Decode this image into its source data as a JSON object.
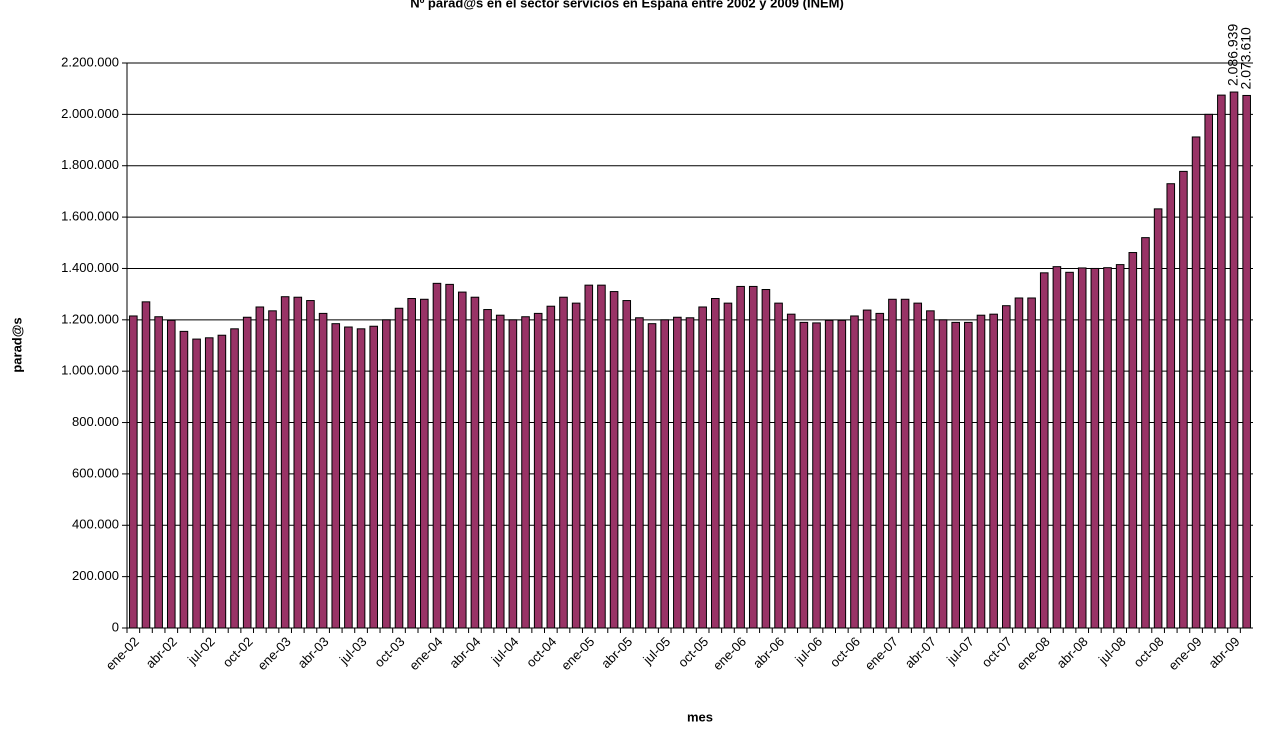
{
  "chart_data": {
    "type": "bar",
    "title": "Nº parad@s en el sector servicios en España entre 2002 y 2009 (INEM)",
    "x_label": "mes",
    "y_label": "parad@s",
    "categories": [
      "ene-02",
      null,
      null,
      "abr-02",
      null,
      null,
      "jul-02",
      null,
      null,
      "oct-02",
      null,
      null,
      "ene-03",
      null,
      null,
      "abr-03",
      null,
      null,
      "jul-03",
      null,
      null,
      "oct-03",
      null,
      null,
      "ene-04",
      null,
      null,
      "abr-04",
      null,
      null,
      "jul-04",
      null,
      null,
      "oct-04",
      null,
      null,
      "ene-05",
      null,
      null,
      "abr-05",
      null,
      null,
      "jul-05",
      null,
      null,
      "oct-05",
      null,
      null,
      "ene-06",
      null,
      null,
      "abr-06",
      null,
      null,
      "jul-06",
      null,
      null,
      "oct-06",
      null,
      null,
      "ene-07",
      null,
      null,
      "abr-07",
      null,
      null,
      "jul-07",
      null,
      null,
      "oct-07",
      null,
      null,
      "ene-08",
      null,
      null,
      "abr-08",
      null,
      null,
      "jul-08",
      null,
      null,
      "oct-08",
      null,
      null,
      "ene-09",
      null,
      null,
      "abr-09",
      null
    ],
    "values": [
      1215000,
      1270000,
      1212000,
      1198000,
      1155000,
      1125000,
      1130000,
      1140000,
      1165000,
      1210000,
      1250000,
      1235000,
      1290000,
      1288000,
      1275000,
      1225000,
      1185000,
      1172000,
      1165000,
      1175000,
      1200000,
      1245000,
      1283000,
      1280000,
      1342000,
      1338000,
      1308000,
      1288000,
      1240000,
      1218000,
      1200000,
      1212000,
      1225000,
      1253000,
      1288000,
      1265000,
      1335000,
      1335000,
      1310000,
      1275000,
      1208000,
      1185000,
      1200000,
      1210000,
      1208000,
      1250000,
      1283000,
      1265000,
      1330000,
      1330000,
      1318000,
      1265000,
      1222000,
      1190000,
      1188000,
      1198000,
      1198000,
      1215000,
      1238000,
      1225000,
      1280000,
      1280000,
      1265000,
      1235000,
      1200000,
      1190000,
      1190000,
      1218000,
      1222000,
      1255000,
      1285000,
      1285000,
      1383000,
      1407000,
      1385000,
      1402000,
      1400000,
      1403000,
      1415000,
      1462000,
      1520000,
      1632000,
      1730000,
      1778000,
      1912000,
      2000000,
      2075000,
      2086939,
      2073610
    ],
    "value_labels": [
      null,
      null,
      null,
      null,
      null,
      null,
      null,
      null,
      null,
      null,
      null,
      null,
      null,
      null,
      null,
      null,
      null,
      null,
      null,
      null,
      null,
      null,
      null,
      null,
      null,
      null,
      null,
      null,
      null,
      null,
      null,
      null,
      null,
      null,
      null,
      null,
      null,
      null,
      null,
      null,
      null,
      null,
      null,
      null,
      null,
      null,
      null,
      null,
      null,
      null,
      null,
      null,
      null,
      null,
      null,
      null,
      null,
      null,
      null,
      null,
      null,
      null,
      null,
      null,
      null,
      null,
      null,
      null,
      null,
      null,
      null,
      null,
      null,
      null,
      null,
      null,
      null,
      null,
      null,
      null,
      null,
      null,
      null,
      null,
      null,
      null,
      null,
      "2.086.939",
      "2.073.610"
    ],
    "color": "#993366",
    "ylim": [
      0,
      2200000
    ],
    "yticks": [
      0,
      {
        "value": 200000,
        "label": "200.000"
      },
      {
        "value": 400000,
        "label": "400.000"
      },
      {
        "value": 600000,
        "label": "600.000"
      },
      {
        "value": 800000,
        "label": "800.000"
      },
      {
        "value": 1000000,
        "label": "1.000.000"
      },
      {
        "value": 1200000,
        "label": "1.200.000"
      },
      {
        "value": 1400000,
        "label": "1.400.000"
      },
      {
        "value": 1600000,
        "label": "1.600.000"
      },
      {
        "value": 1800000,
        "label": "1.800.000"
      },
      {
        "value": 2000000,
        "label": "2.000.000"
      },
      {
        "value": 2200000,
        "label": "2.200.000"
      }
    ],
    "grid": true
  }
}
